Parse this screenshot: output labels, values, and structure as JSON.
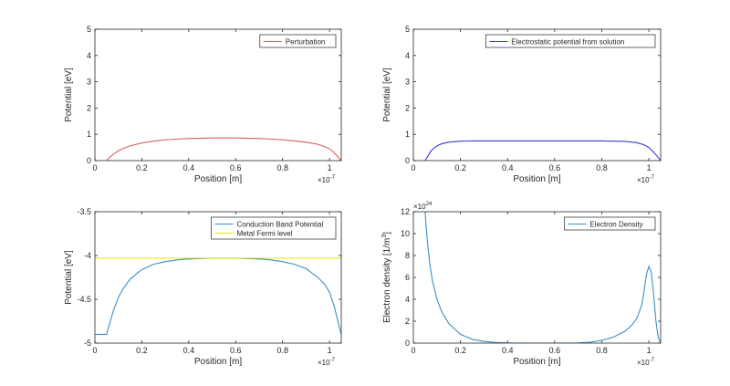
{
  "figure": {
    "background": "#ffffff",
    "axis_color": "#262626"
  },
  "chart_data": [
    {
      "type": "line",
      "xlabel": "Position [m]",
      "ylabel": "Potential [eV]",
      "xlim": [
        0,
        1.05
      ],
      "ylim": [
        0,
        5
      ],
      "x_exponent": "×10",
      "x_exponent_power": "-7",
      "xticks": [
        {
          "v": 0,
          "label": "0"
        },
        {
          "v": 0.2,
          "label": "0.2"
        },
        {
          "v": 0.4,
          "label": "0.4"
        },
        {
          "v": 0.6,
          "label": "0.6"
        },
        {
          "v": 0.8,
          "label": "0.8"
        },
        {
          "v": 1.0,
          "label": "1"
        }
      ],
      "yticks": [
        {
          "v": 0,
          "label": "0"
        },
        {
          "v": 1,
          "label": "1"
        },
        {
          "v": 2,
          "label": "2"
        },
        {
          "v": 3,
          "label": "3"
        },
        {
          "v": 4,
          "label": "4"
        },
        {
          "v": 5,
          "label": "5"
        }
      ],
      "legend_position": "top-right",
      "series": [
        {
          "name": "Perturbation",
          "color": "#d95f5f",
          "x": [
            0.05,
            0.06,
            0.08,
            0.1,
            0.12,
            0.15,
            0.2,
            0.25,
            0.3,
            0.35,
            0.4,
            0.45,
            0.5,
            0.55,
            0.6,
            0.65,
            0.7,
            0.75,
            0.8,
            0.85,
            0.9,
            0.95,
            0.98,
            1.0,
            1.02,
            1.04,
            1.05
          ],
          "y": [
            0,
            0.1,
            0.25,
            0.37,
            0.46,
            0.56,
            0.67,
            0.74,
            0.79,
            0.82,
            0.84,
            0.85,
            0.86,
            0.86,
            0.86,
            0.85,
            0.84,
            0.82,
            0.79,
            0.75,
            0.7,
            0.62,
            0.53,
            0.45,
            0.3,
            0.1,
            0
          ]
        }
      ]
    },
    {
      "type": "line",
      "xlabel": "Position [m]",
      "ylabel": "Potential [eV]",
      "xlim": [
        0,
        1.05
      ],
      "ylim": [
        0,
        5
      ],
      "x_exponent": "×10",
      "x_exponent_power": "-7",
      "xticks": [
        {
          "v": 0,
          "label": "0"
        },
        {
          "v": 0.2,
          "label": "0.2"
        },
        {
          "v": 0.4,
          "label": "0.4"
        },
        {
          "v": 0.6,
          "label": "0.6"
        },
        {
          "v": 0.8,
          "label": "0.8"
        },
        {
          "v": 1.0,
          "label": "1"
        }
      ],
      "yticks": [
        {
          "v": 0,
          "label": "0"
        },
        {
          "v": 1,
          "label": "1"
        },
        {
          "v": 2,
          "label": "2"
        },
        {
          "v": 3,
          "label": "3"
        },
        {
          "v": 4,
          "label": "4"
        },
        {
          "v": 5,
          "label": "5"
        }
      ],
      "legend_position": "top-right",
      "series": [
        {
          "name": "Electrostatic potential from solution",
          "color": "#3b3bd6",
          "x": [
            0.05,
            0.06,
            0.07,
            0.08,
            0.1,
            0.12,
            0.15,
            0.2,
            0.25,
            0.3,
            0.4,
            0.5,
            0.6,
            0.7,
            0.8,
            0.85,
            0.9,
            0.95,
            0.98,
            1.0,
            1.02,
            1.04,
            1.05
          ],
          "y": [
            0,
            0.15,
            0.3,
            0.42,
            0.56,
            0.64,
            0.7,
            0.74,
            0.75,
            0.75,
            0.75,
            0.75,
            0.75,
            0.75,
            0.75,
            0.74,
            0.73,
            0.68,
            0.6,
            0.5,
            0.32,
            0.12,
            0
          ]
        }
      ]
    },
    {
      "type": "line",
      "xlabel": "Position [m]",
      "ylabel": "Potential [eV]",
      "xlim": [
        0,
        1.05
      ],
      "ylim": [
        -5,
        -3.5
      ],
      "x_exponent": "×10",
      "x_exponent_power": "-7",
      "xticks": [
        {
          "v": 0,
          "label": "0"
        },
        {
          "v": 0.2,
          "label": "0.2"
        },
        {
          "v": 0.4,
          "label": "0.4"
        },
        {
          "v": 0.6,
          "label": "0.6"
        },
        {
          "v": 0.8,
          "label": "0.8"
        },
        {
          "v": 1.0,
          "label": "1"
        }
      ],
      "yticks": [
        {
          "v": -5,
          "label": "-5"
        },
        {
          "v": -4.5,
          "label": "-4.5"
        },
        {
          "v": -4,
          "label": "-4"
        },
        {
          "v": -3.5,
          "label": "-3.5"
        }
      ],
      "legend_position": "top-right",
      "series": [
        {
          "name": "Conduction Band Potential",
          "color": "#3a8fc7",
          "x": [
            0,
            0.05,
            0.06,
            0.08,
            0.1,
            0.12,
            0.15,
            0.2,
            0.25,
            0.3,
            0.35,
            0.4,
            0.45,
            0.5,
            0.55,
            0.6,
            0.65,
            0.7,
            0.75,
            0.8,
            0.85,
            0.9,
            0.95,
            0.98,
            1.0,
            1.02,
            1.04,
            1.05
          ],
          "y": [
            -4.9,
            -4.9,
            -4.8,
            -4.62,
            -4.48,
            -4.38,
            -4.27,
            -4.16,
            -4.1,
            -4.07,
            -4.05,
            -4.04,
            -4.035,
            -4.03,
            -4.03,
            -4.03,
            -4.035,
            -4.04,
            -4.05,
            -4.07,
            -4.1,
            -4.15,
            -4.25,
            -4.33,
            -4.42,
            -4.58,
            -4.8,
            -4.9
          ]
        },
        {
          "name": "Metal Fermi level",
          "color": "#e6e600",
          "x": [
            0,
            1.05
          ],
          "y": [
            -4.03,
            -4.03
          ]
        }
      ]
    },
    {
      "type": "line",
      "xlabel": "Position [m]",
      "ylabel": "Electron density [1/m",
      "ylabel_sup": "3",
      "ylabel_end": "]",
      "xlim": [
        0,
        1.05
      ],
      "ylim": [
        0,
        12
      ],
      "x_exponent": "×10",
      "x_exponent_power": "-7",
      "y_exponent": "×10",
      "y_exponent_power": "24",
      "xticks": [
        {
          "v": 0,
          "label": "0"
        },
        {
          "v": 0.2,
          "label": "0.2"
        },
        {
          "v": 0.4,
          "label": "0.4"
        },
        {
          "v": 0.6,
          "label": "0.6"
        },
        {
          "v": 0.8,
          "label": "0.8"
        },
        {
          "v": 1.0,
          "label": "1"
        }
      ],
      "yticks": [
        {
          "v": 0,
          "label": "0"
        },
        {
          "v": 2,
          "label": "2"
        },
        {
          "v": 4,
          "label": "4"
        },
        {
          "v": 6,
          "label": "6"
        },
        {
          "v": 8,
          "label": "8"
        },
        {
          "v": 10,
          "label": "10"
        },
        {
          "v": 12,
          "label": "12"
        }
      ],
      "legend_position": "top-right",
      "series": [
        {
          "name": "Electron Density",
          "color": "#3a8fc7",
          "x": [
            0.05,
            0.055,
            0.06,
            0.07,
            0.08,
            0.1,
            0.12,
            0.15,
            0.2,
            0.25,
            0.3,
            0.35,
            0.4,
            0.5,
            0.6,
            0.7,
            0.75,
            0.8,
            0.85,
            0.9,
            0.93,
            0.95,
            0.97,
            0.98,
            0.99,
            1.0,
            1.01,
            1.02,
            1.03,
            1.04,
            1.05
          ],
          "y": [
            12,
            10.5,
            9.2,
            7.2,
            5.8,
            4.0,
            2.9,
            1.8,
            0.8,
            0.35,
            0.15,
            0.06,
            0.02,
            0.0,
            0.0,
            0.02,
            0.08,
            0.25,
            0.55,
            1.1,
            1.7,
            2.3,
            3.5,
            4.8,
            6.3,
            7.0,
            6.5,
            4.5,
            2.0,
            0.5,
            0.0
          ]
        }
      ]
    }
  ]
}
